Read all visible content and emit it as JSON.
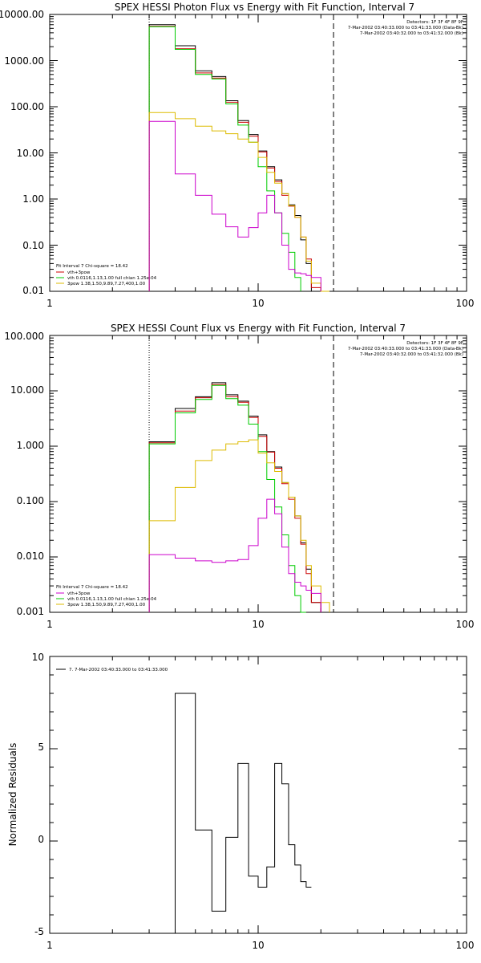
{
  "colors": {
    "black": "#000000",
    "red": "#cc0000",
    "green": "#00cc00",
    "magenta": "#cc00cc",
    "yellow": "#ddbb00"
  },
  "chart_data": [
    {
      "type": "line",
      "title": "SPEX HESSI Photon Flux vs Energy with Fit Function, Interval 7",
      "xscale": "log",
      "yscale": "log",
      "xlim": [
        1,
        100
      ],
      "ylim": [
        0.01,
        10000
      ],
      "x_ticks": [
        "1",
        "10",
        "100"
      ],
      "y_ticks": [
        "0.01",
        "0.10",
        "1.00",
        "10.00",
        "100.00",
        "1000.00",
        "10000.00"
      ],
      "vlines": [
        {
          "x": 3,
          "style": "dotted"
        },
        {
          "x": 23,
          "style": "dashed"
        }
      ],
      "header_text": [
        "Detectors: 1F 3F 4F 8F 9F",
        "7-Mar-2002 03:40:33.000 to 03:41:33.000 (Data-Bk)",
        "7-Mar-2002 03:40:32.000 to 03:41:32.000 (Bk)"
      ],
      "fit_text": [
        "Fit Interval 7   Chi-square = 18.42",
        "vth+3pow",
        "vth 0.0116,1.13,1.00  full chian 1.25e-04",
        "3pow 1.38,1.50,9.89,7.27,400,1.00"
      ],
      "edges": [
        3,
        4,
        5,
        6,
        7,
        8,
        9,
        10,
        11,
        12,
        13,
        14,
        15,
        16,
        17,
        18,
        20,
        22,
        24,
        26,
        28,
        30
      ],
      "series": [
        {
          "key": "data",
          "color": "#000000",
          "values": [
            6000,
            2100,
            600,
            450,
            135,
            50,
            25,
            11,
            5,
            2.6,
            1.3,
            0.75,
            0.44,
            0.13,
            0.04,
            0.008
          ]
        },
        {
          "key": "total",
          "color": "#cc0000",
          "values": [
            5500,
            1800,
            540,
            420,
            125,
            46,
            23,
            10.5,
            4.7,
            2.4,
            1.2,
            0.7,
            0.4,
            0.15,
            0.05,
            0.012
          ]
        },
        {
          "key": "vth",
          "color": "#00cc00",
          "values": [
            5400,
            1750,
            500,
            400,
            115,
            40,
            17,
            5,
            1.5,
            0.5,
            0.18,
            0.07,
            0.02
          ]
        },
        {
          "key": "3pow",
          "color": "#ddbb00",
          "values": [
            75,
            55,
            38,
            30,
            26,
            20,
            17,
            8,
            3.8,
            2.2,
            1.3,
            0.72,
            0.4,
            0.15,
            0.045,
            0.015,
            0.008
          ]
        },
        {
          "key": "bk",
          "color": "#cc00cc",
          "values": [
            48,
            3.5,
            1.2,
            0.47,
            0.25,
            0.15,
            0.24,
            0.5,
            1.2,
            0.5,
            0.1,
            0.03,
            0.025,
            0.024,
            0.022,
            0.02
          ]
        }
      ]
    },
    {
      "type": "line",
      "title": "SPEX HESSI Count Flux vs Energy with Fit Function, Interval 7",
      "xscale": "log",
      "yscale": "log",
      "xlim": [
        1,
        100
      ],
      "ylim": [
        0.001,
        100
      ],
      "x_ticks": [
        "1",
        "10",
        "100"
      ],
      "y_ticks": [
        "0.001",
        "0.010",
        "0.100",
        "1.000",
        "10.000",
        "100.000"
      ],
      "vlines": [
        {
          "x": 3,
          "style": "dotted"
        },
        {
          "x": 23,
          "style": "dashed"
        }
      ],
      "header_text": [
        "Detectors: 1F 3F 4F 8F 9F",
        "7-Mar-2002 03:40:33.000 to 03:41:33.000 (Data-Bk)",
        "7-Mar-2002 03:40:32.000 to 03:41:32.000 (Bk)"
      ],
      "fit_text": [
        "Fit Interval 7   Chi-square = 18.42",
        "vth+3pow",
        "vth 0.0116,1.13,1.00  full chian 1.25e-04",
        "3pow 1.38,1.50,9.89,7.27,400,1.00"
      ],
      "edges": [
        3,
        4,
        5,
        6,
        7,
        8,
        9,
        10,
        11,
        12,
        13,
        14,
        15,
        16,
        17,
        18,
        20,
        22,
        24,
        26,
        28,
        30
      ],
      "series": [
        {
          "key": "data",
          "color": "#000000",
          "values": [
            1.2,
            4.8,
            7.8,
            14,
            8.5,
            6.5,
            3.5,
            1.6,
            0.8,
            0.42,
            0.22,
            0.12,
            0.055,
            0.018,
            0.006,
            0.0015
          ]
        },
        {
          "key": "total",
          "color": "#cc0000",
          "values": [
            1.15,
            4.3,
            7.5,
            13,
            7.9,
            6.2,
            3.3,
            1.5,
            0.78,
            0.4,
            0.21,
            0.11,
            0.05,
            0.017,
            0.005,
            0.0015
          ]
        },
        {
          "key": "vth",
          "color": "#00cc00",
          "values": [
            1.1,
            4.0,
            7.0,
            12.5,
            7.2,
            5.5,
            2.5,
            0.8,
            0.25,
            0.08,
            0.025,
            0.007,
            0.002,
            0.0008
          ]
        },
        {
          "key": "3pow",
          "color": "#ddbb00",
          "values": [
            0.045,
            0.18,
            0.55,
            0.85,
            1.1,
            1.2,
            1.3,
            0.75,
            0.5,
            0.35,
            0.22,
            0.12,
            0.055,
            0.02,
            0.007,
            0.003,
            0.0015
          ]
        },
        {
          "key": "bk",
          "color": "#cc00cc",
          "values": [
            0.011,
            0.0095,
            0.0085,
            0.008,
            0.0085,
            0.009,
            0.016,
            0.05,
            0.11,
            0.06,
            0.015,
            0.005,
            0.0035,
            0.003,
            0.0025,
            0.0022
          ]
        }
      ]
    },
    {
      "type": "line",
      "title": "",
      "xscale": "log",
      "yscale": "linear",
      "xlim": [
        1,
        100
      ],
      "ylim": [
        -5,
        10
      ],
      "x_ticks": [
        "1",
        "10",
        "100"
      ],
      "y_ticks": [
        "-5",
        "0",
        "5",
        "10"
      ],
      "ylabel": "Normalized Residuals",
      "legend": "7.  7-Mar-2002 03:40:33.000 to 03:41:33.000",
      "edges": [
        3,
        4,
        5,
        6,
        7,
        8,
        9,
        10,
        11,
        12,
        13,
        14,
        15,
        16,
        17,
        18,
        20,
        22,
        24,
        26,
        28,
        30
      ],
      "series": [
        {
          "key": "residuals",
          "color": "#000000",
          "values": [
            -5,
            8,
            0.6,
            -3.8,
            0.2,
            4.2,
            -1.9,
            -2.5,
            -1.4,
            4.2,
            3.1,
            -0.2,
            -1.3,
            -2.2,
            -2.5
          ]
        }
      ]
    }
  ]
}
